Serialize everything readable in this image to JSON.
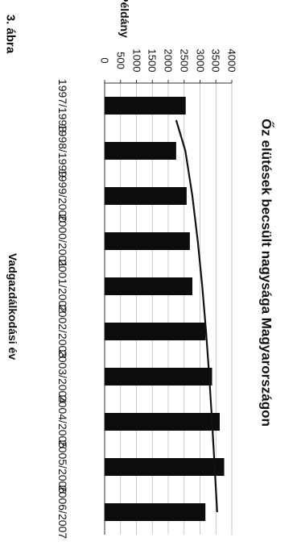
{
  "figure_label": "3. ábra",
  "chart_data": {
    "type": "bar",
    "title": "Őz elütések becsült nagysága Magyarországon",
    "xlabel": "Vadgazdálkodási év",
    "ylabel": "Példány",
    "ylim": [
      0,
      4000
    ],
    "yticks": [
      "0",
      "500",
      "1000",
      "1500",
      "2000",
      "2500",
      "3000",
      "3500",
      "4000"
    ],
    "grid": true,
    "categories": [
      "1997/1998",
      "1998/1999",
      "1999/2000",
      "2000/2001",
      "2001/2002",
      "2002/2003",
      "2003/2004",
      "2004/2005",
      "2005/2006",
      "2006/2007"
    ],
    "values": [
      2550,
      2250,
      2580,
      2680,
      2760,
      3170,
      3380,
      3620,
      3760,
      3170
    ],
    "trendline": [
      2250,
      2540,
      2760,
      2930,
      3070,
      3190,
      3290,
      3380,
      3460,
      3540
    ]
  }
}
